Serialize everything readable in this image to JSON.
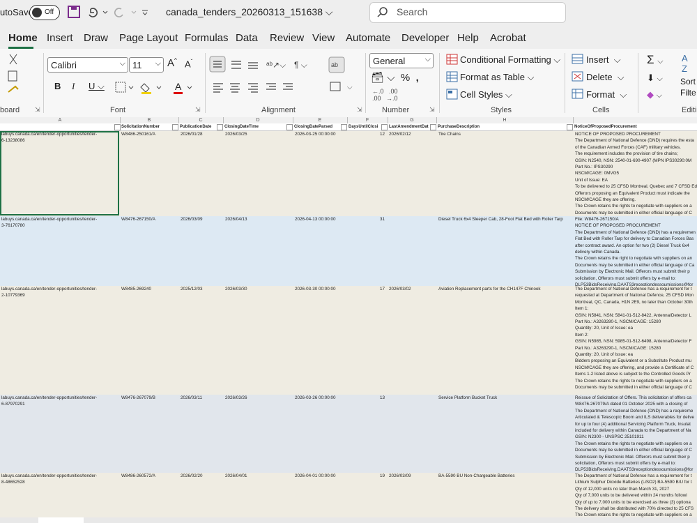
{
  "titlebar": {
    "autosave": "utoSave",
    "toggle": "Off",
    "filename": "canada_tenders_20260313_151638",
    "search": "Search"
  },
  "tabs": [
    "Home",
    "Insert",
    "Draw",
    "Page Layout",
    "Formulas",
    "Data",
    "Review",
    "View",
    "Automate",
    "Developer",
    "Help",
    "Acrobat"
  ],
  "ribbon": {
    "clipboard_label": "board",
    "font_name": "Calibri",
    "font_size": "11",
    "font_label": "Font",
    "alignment_label": "Alignment",
    "number_format": "General",
    "number_label": "Number",
    "conditional": "Conditional Formatting",
    "format_table": "Format as Table",
    "cell_styles": "Cell Styles",
    "styles_label": "Styles",
    "insert": "Insert",
    "delete": "Delete",
    "format": "Format",
    "cells_label": "Cells",
    "sort": "Sort",
    "filter": "Filte",
    "editing_label": "Editi"
  },
  "sheet": {
    "columns": [
      "A",
      "B",
      "C",
      "D",
      "E",
      "F",
      "G",
      "H"
    ],
    "headers": [
      "SolicitationNumber",
      "PublicationDate",
      "ClosingDateTime",
      "ClosingDateParsed",
      "DaysUntilClosi",
      "LastAmendmentDat",
      "PurchaseDescription",
      "NoticeOfProposedProcurement"
    ],
    "rows": [
      {
        "url": [
          "labuys.canada.ca/en/tender-opportunities/tender-",
          "6-13238086"
        ],
        "solicitation": "W8486-250161/A",
        "publication": "2026/01/28",
        "closing": "2026/03/25",
        "closing_parsed": "2026-03-25 00:00:00",
        "days": 12,
        "amendment": "2026/02/12",
        "description": "Tire Chains",
        "notice": [
          "NOTICE OF PROPOSED PROCUREMENT",
          "The Department of National Defence (DND) requires the esta",
          "of the Canadian Armed Forces (CAF) military vehicles.",
          "The requirement includes the provision of tire chains;",
          "GSIN: N2540, NSN: 2540-01-690-4907 (MPN IPS30290:0M",
          "Part No.: IPS30290",
          "NSCM/CAGE: 0MVG5",
          "Unit of Issue: EA",
          "To be delivered to 25 CFSD Montreal, Quebec and 7 CFSD Ed",
          "Offerors proposing an Equivalent Product must indicate the",
          "NSCM/CAGE they are offering.",
          "The Crown retains the rights to negotiate with suppliers on a",
          "Documents may be submitted in either official language of C"
        ]
      },
      {
        "url": [
          "labuys.canada.ca/en/tender-opportunities/tender-",
          "3-76170780"
        ],
        "solicitation": "W8476-267150/A",
        "publication": "2026/03/09",
        "closing": "2026/04/13",
        "closing_parsed": "2026-04-13 00:00:00",
        "days": 31,
        "description": "Diesel Truck 6x4 Sleeper Cab, 28-Foot Flat Bed with Roller Tarp",
        "notice": [
          "File: W8476-267150/A",
          "NOTICE OF PROPOSED PROCUREMENT",
          "The Department of National Defence (DND) has a requiremen",
          "Flat Bed with Roller Tarp for delivery to Canadian Forces Bas",
          "after contract award. An option for two (2) Diesel Truck 6x4",
          "delivery within Canada.",
          "The Crown retains the right to negotiate with suppliers on an",
          "Documents may be submitted in either official language of Ca",
          "Submission by Electronic Mail. Offerors must submit their p",
          "solicitation, Offerors must submit offers by e-mail to:",
          "DLP53BidsReceiving.DAATS3receptiondessoumissions@for"
        ]
      },
      {
        "url": [
          "labuys.canada.ca/en/tender-opportunities/tender-",
          "2-10779369"
        ],
        "solicitation": "W8485-269240",
        "publication": "2025/12/03",
        "closing": "2026/03/30",
        "closing_parsed": "2026-03-30 00:00:00",
        "days": 17,
        "amendment": "2026/03/02",
        "description": "Aviation Replacement parts for the CH147F Chinook",
        "notice": [
          "The Department of National Defence has a requirement for t",
          "requested at Department of National Defence, 25 CFSD Mon",
          "Montreal, QC, Canada, H1N 2E9, no later than October 30th",
          "Item 1:",
          "GSIN: N5841, NSN: 5841-01-512-8422, Antenna/Detector L",
          "Part No.: A3263280-1, NSCM/CAGE: 15280",
          "Quantity: 20, Unit of Issue: ea",
          "Item 2:",
          "GSIN: N5985, NSN: 5985-01-512-6498, Antenna/Detector F",
          "Part No.: A3263290-1, NSCM/CAGE: 15280",
          "Quantity: 20, Unit of Issue: ea",
          "Bidders proposing an Equivalent or a Substitute Product mu",
          "NSCM/CAGE they are offering, and provide a Certificate of C",
          "Items 1-2 listed above is subject to the Controlled Goods Pr",
          "The Crown retains the rights to negotiate with suppliers on a",
          "Documents may be submitted in either official language of C"
        ]
      },
      {
        "url": [
          "labuys.canada.ca/en/tender-opportunities/tender-",
          "6-87970291"
        ],
        "solicitation": "W8476-267079/B",
        "publication": "2026/03/11",
        "closing": "2026/03/26",
        "closing_parsed": "2026-03-26 00:00:00",
        "days": 13,
        "description": "Service Platform Bucket Truck",
        "notice": [
          "Reissue of Solicitation of Offers. This solicitation of offers ca",
          "W8476-267079/A dated 01 October 2025 with a closing of",
          "The Department of National Defence (DND) has a requireme",
          "Articulated & Telescopic Boom and ILS deliverables for delive",
          "for up to four (4) additional Servicing Platform Truck, Insulat",
          "included for delivery within Canada to the Department of Na",
          "GSIN: N2300 - UNSPSC 25101911",
          "The Crown retains the rights to negotiate with suppliers on a",
          "Documents may be submitted in either official language of C",
          "Submission by Electronic Mail. Offerors must submit their p",
          "solicitation, Offerors must submit offers by e-mail to:",
          "DLP53BidsReceiving.DAATS3receptiondessoumissions@for"
        ]
      },
      {
        "url": [
          "labuys.canada.ca/en/tender-opportunities/tender-",
          "8-48652528"
        ],
        "solicitation": "W8486-260572/A",
        "publication": "2026/02/20",
        "closing": "2026/04/01",
        "closing_parsed": "2026-04-01 00:00:00",
        "days": 19,
        "amendment": "2026/03/09",
        "description": "BA-5590 BU Non-Chargeable Batteries",
        "notice": [
          "The Department of National Defence has a requirement for t",
          "Lithium Sulphur Dioxide Batteries (LiSO2) BA-5590 B/U for t",
          "Qty of 12,000 units no later than March 31, 2027",
          "Qty of 7,000 units to be delivered within 24 months followi",
          "Qty of up to 7,000 units to be exercised as three (3) optiona",
          "The delivery shall be distributed with 70% directed to 25 CFS",
          "The Crown retains the rights to negotiate with suppliers on a"
        ]
      }
    ]
  }
}
